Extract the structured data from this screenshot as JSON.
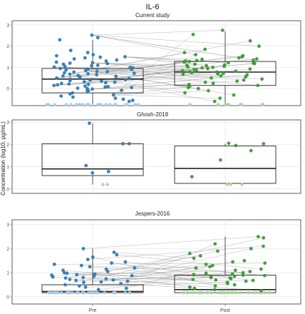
{
  "figure": {
    "title": "IL-6",
    "ylabel": "Concentration (log10, pg/mL)",
    "x_categories": [
      "Pre",
      "Post"
    ]
  },
  "colors": {
    "pre": "#2e7bb5",
    "pre_light": "#a9c9e6",
    "post": "#3d9a35",
    "post_light": "#a6d69a",
    "grid": "#e3e3e3",
    "pair_line": "#9a9a9a",
    "box": "#222222",
    "panel_border": "#333333"
  },
  "chart_data": [
    {
      "type": "box",
      "title": "Current study",
      "categories": [
        "Pre",
        "Post"
      ],
      "ylim": [
        -0.8,
        3.2
      ],
      "yticks": [
        0,
        1,
        2,
        3
      ],
      "grid": true,
      "boxes": [
        {
          "name": "Pre",
          "q1": -0.2,
          "median": 0.45,
          "q3": 0.95,
          "whisker_low": -0.75,
          "whisker_high": 2.3
        },
        {
          "name": "Post",
          "q1": 0.15,
          "median": 0.78,
          "q3": 1.28,
          "whisker_low": -0.75,
          "whisker_high": 2.7
        }
      ],
      "below_lod_value": -0.75,
      "points": [
        {
          "group": "Pre",
          "values": [
            2.52,
            2.4,
            2.3,
            1.8,
            1.7,
            1.6,
            1.55,
            1.5,
            1.48,
            1.45,
            1.4,
            1.35,
            1.3,
            1.25,
            1.22,
            1.2,
            1.18,
            1.15,
            1.1,
            1.08,
            1.05,
            1.02,
            1.0,
            0.98,
            0.95,
            0.92,
            0.9,
            0.88,
            0.85,
            0.82,
            0.8,
            0.78,
            0.75,
            0.72,
            0.7,
            0.68,
            0.65,
            0.62,
            0.6,
            0.58,
            0.55,
            0.52,
            0.5,
            0.48,
            0.45,
            0.42,
            0.4,
            0.38,
            0.35,
            0.32,
            0.3,
            0.28,
            0.25,
            0.22,
            0.2,
            0.18,
            0.15,
            0.12,
            0.1,
            0.08,
            0.05,
            0.02,
            0.0,
            -0.02,
            -0.05,
            -0.08,
            -0.1,
            -0.15,
            -0.2,
            -0.25,
            -0.3,
            -0.35,
            -0.4,
            -0.45,
            -0.5,
            -0.55,
            -0.6
          ],
          "below_lod_count": 22
        },
        {
          "group": "Post",
          "values": [
            2.75,
            2.55,
            2.25,
            2.0,
            1.85,
            1.7,
            1.6,
            1.55,
            1.5,
            1.45,
            1.4,
            1.38,
            1.35,
            1.32,
            1.3,
            1.28,
            1.25,
            1.22,
            1.2,
            1.18,
            1.15,
            1.12,
            1.1,
            1.08,
            1.05,
            1.02,
            1.0,
            0.98,
            0.95,
            0.92,
            0.9,
            0.88,
            0.85,
            0.82,
            0.8,
            0.78,
            0.75,
            0.72,
            0.7,
            0.68,
            0.65,
            0.6,
            0.55,
            0.5,
            0.45,
            0.4,
            0.35,
            0.3,
            0.25,
            0.2,
            0.15,
            0.1,
            0.05,
            0.0,
            -0.1,
            -0.2,
            -0.3,
            -0.45,
            -0.6
          ],
          "below_lod_count": 10
        }
      ],
      "pair_count": 55
    },
    {
      "type": "box",
      "title": "Ghosh-2018",
      "categories": [
        "Pre",
        "Post"
      ],
      "ylim": [
        -0.2,
        3.1
      ],
      "yticks": [
        0,
        1,
        2,
        3
      ],
      "grid": true,
      "boxes": [
        {
          "name": "Pre",
          "q1": 0.6,
          "median": 0.9,
          "q3": 2.03,
          "whisker_low": 0.2,
          "whisker_high": 2.95
        },
        {
          "name": "Post",
          "q1": 0.25,
          "median": 0.92,
          "q3": 1.93,
          "whisker_low": 0.25,
          "whisker_high": 2.03
        }
      ],
      "below_lod_value": 0.2,
      "points": [
        {
          "group": "Pre",
          "values": [
            2.95,
            2.03,
            2.03,
            1.05,
            0.72,
            0.78
          ],
          "below_lod_count": 2
        },
        {
          "group": "Post",
          "values": [
            2.05,
            2.03,
            1.95,
            1.72,
            1.3,
            0.55
          ],
          "below_lod_count": 3
        }
      ],
      "pair_count": 0
    },
    {
      "type": "box",
      "title": "Jespers-2016",
      "categories": [
        "Pre",
        "Post"
      ],
      "ylim": [
        -0.3,
        3.2
      ],
      "yticks": [
        0,
        1,
        2,
        3
      ],
      "grid": true,
      "boxes": [
        {
          "name": "Pre",
          "q1": 0.17,
          "median": 0.22,
          "q3": 0.5,
          "whisker_low": 0.17,
          "whisker_high": 2.0
        },
        {
          "name": "Post",
          "q1": 0.17,
          "median": 0.3,
          "q3": 0.9,
          "whisker_low": 0.17,
          "whisker_high": 2.5
        }
      ],
      "below_lod_value": 0.17,
      "points": [
        {
          "group": "Pre",
          "values": [
            2.0,
            1.85,
            1.75,
            1.65,
            1.55,
            1.45,
            1.4,
            1.35,
            1.3,
            1.25,
            1.2,
            1.15,
            1.1,
            1.05,
            1.0,
            0.98,
            0.95,
            0.92,
            0.9,
            0.88,
            0.85,
            0.82,
            0.8,
            0.78,
            0.75,
            0.72,
            0.7,
            0.68,
            0.65,
            0.62,
            0.6,
            0.55,
            0.5,
            0.45,
            0.4,
            0.35,
            0.3
          ],
          "below_lod_count": 30
        },
        {
          "group": "Post",
          "values": [
            2.5,
            2.45,
            2.2,
            2.1,
            2.0,
            1.9,
            1.8,
            1.7,
            1.6,
            1.5,
            1.45,
            1.4,
            1.35,
            1.3,
            1.25,
            1.2,
            1.15,
            1.1,
            1.05,
            1.0,
            0.98,
            0.95,
            0.92,
            0.9,
            0.88,
            0.85,
            0.82,
            0.8,
            0.78,
            0.75,
            0.72,
            0.7,
            0.68,
            0.65,
            0.6,
            0.55,
            0.5,
            0.45,
            0.4,
            0.35,
            0.3,
            0.25
          ],
          "below_lod_count": 30
        }
      ],
      "pair_count": 40
    }
  ]
}
